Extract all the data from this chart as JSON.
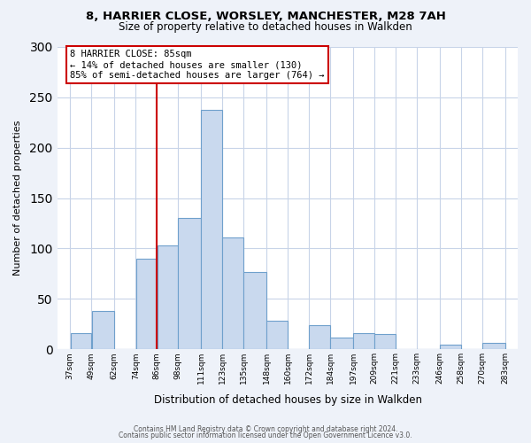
{
  "title_line1": "8, HARRIER CLOSE, WORSLEY, MANCHESTER, M28 7AH",
  "title_line2": "Size of property relative to detached houses in Walkden",
  "xlabel": "Distribution of detached houses by size in Walkden",
  "ylabel": "Number of detached properties",
  "bar_left_edges": [
    37,
    49,
    62,
    74,
    86,
    98,
    111,
    123,
    135,
    148,
    160,
    172,
    184,
    197,
    209,
    221,
    233,
    246,
    258,
    270
  ],
  "bar_widths": [
    12,
    13,
    12,
    12,
    12,
    13,
    12,
    12,
    13,
    12,
    12,
    12,
    13,
    12,
    12,
    12,
    13,
    12,
    12,
    13
  ],
  "bar_heights": [
    16,
    38,
    0,
    90,
    103,
    130,
    238,
    111,
    77,
    28,
    0,
    24,
    12,
    16,
    15,
    0,
    0,
    5,
    0,
    6
  ],
  "bar_color": "#c9d9ee",
  "bar_edge_color": "#6fa0cc",
  "tick_labels": [
    "37sqm",
    "49sqm",
    "62sqm",
    "74sqm",
    "86sqm",
    "98sqm",
    "111sqm",
    "123sqm",
    "135sqm",
    "148sqm",
    "160sqm",
    "172sqm",
    "184sqm",
    "197sqm",
    "209sqm",
    "221sqm",
    "233sqm",
    "246sqm",
    "258sqm",
    "270sqm",
    "283sqm"
  ],
  "tick_positions": [
    37,
    49,
    62,
    74,
    86,
    98,
    111,
    123,
    135,
    148,
    160,
    172,
    184,
    197,
    209,
    221,
    233,
    246,
    258,
    270,
    283
  ],
  "xlim_left": 30,
  "xlim_right": 290,
  "ylim": [
    0,
    300
  ],
  "yticks": [
    0,
    50,
    100,
    150,
    200,
    250,
    300
  ],
  "vline_x": 86,
  "vline_color": "#cc0000",
  "annotation_title": "8 HARRIER CLOSE: 85sqm",
  "annotation_line1": "← 14% of detached houses are smaller (130)",
  "annotation_line2": "85% of semi-detached houses are larger (764) →",
  "footer_line1": "Contains HM Land Registry data © Crown copyright and database right 2024.",
  "footer_line2": "Contains public sector information licensed under the Open Government Licence v3.0.",
  "background_color": "#eef2f9",
  "plot_bg_color": "#ffffff",
  "grid_color": "#c8d4e8"
}
